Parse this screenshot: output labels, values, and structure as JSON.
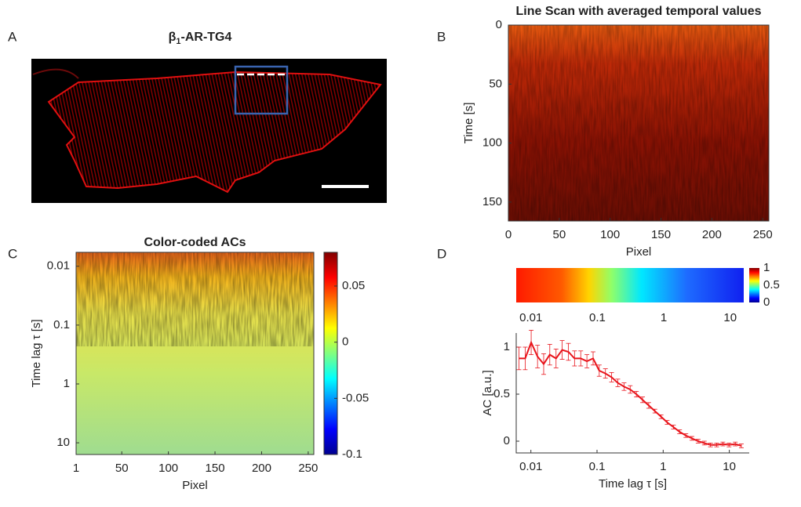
{
  "panel_labels": [
    "A",
    "B",
    "C",
    "D"
  ],
  "chart_data": [
    {
      "type": "image",
      "title": {
        "base": "β",
        "subscript": "1",
        "rest": "-AR-TG4"
      }
    },
    {
      "type": "heatmap",
      "title": "Line Scan with averaged temporal values",
      "xlabel": "Pixel",
      "ylabel": "Time [s]",
      "xlim": [
        0,
        256
      ],
      "ylim": [
        0,
        166
      ],
      "y_reversed": true,
      "xticks": [
        0,
        50,
        100,
        150,
        200,
        250
      ],
      "yticks": [
        0,
        50,
        100,
        150
      ]
    },
    {
      "type": "heatmap",
      "title": "Color-coded ACs",
      "xlabel": "Pixel",
      "ylabel": "Time lag τ [s]",
      "xlim": [
        1,
        256
      ],
      "ylim": [
        0.0058,
        15.8
      ],
      "ylog": true,
      "y_reversed": true,
      "xticks": [
        1,
        50,
        100,
        150,
        200,
        250
      ],
      "yticks": [
        0.01,
        0.1,
        1,
        10
      ],
      "colorbar": {
        "lim": [
          -0.1,
          0.08
        ],
        "ticks": [
          0.05,
          0,
          -0.05,
          -0.1
        ]
      }
    },
    {
      "type": "line",
      "xlabel": "Time lag τ [s]",
      "ylabel": "AC [a.u.]",
      "xlog": true,
      "xlim": [
        0.006,
        20
      ],
      "ylim": [
        -0.125,
        1.15
      ],
      "xticks": [
        0.01,
        0.1,
        1,
        10
      ],
      "yticks": [
        0,
        0.5,
        1
      ],
      "x": [
        0.0066,
        0.0082,
        0.0101,
        0.0126,
        0.0156,
        0.0193,
        0.024,
        0.0297,
        0.0369,
        0.0457,
        0.0567,
        0.0703,
        0.0872,
        0.108,
        0.134,
        0.166,
        0.206,
        0.256,
        0.317,
        0.393,
        0.488,
        0.605,
        0.75,
        0.93,
        1.15,
        1.43,
        1.77,
        2.2,
        2.72,
        3.38,
        4.19,
        5.19,
        6.44,
        7.99,
        9.9,
        12.3,
        15.2
      ],
      "series": [
        {
          "color": "#e8141b",
          "values": [
            0.88,
            0.88,
            1.05,
            0.9,
            0.82,
            0.92,
            0.88,
            0.97,
            0.95,
            0.88,
            0.88,
            0.85,
            0.88,
            0.75,
            0.72,
            0.68,
            0.62,
            0.58,
            0.55,
            0.5,
            0.44,
            0.38,
            0.32,
            0.26,
            0.2,
            0.15,
            0.1,
            0.06,
            0.03,
            0,
            -0.02,
            -0.04,
            -0.04,
            -0.03,
            -0.04,
            -0.03,
            -0.05
          ],
          "errors": [
            0.12,
            0.12,
            0.13,
            0.12,
            0.11,
            0.11,
            0.1,
            0.1,
            0.09,
            0.08,
            0.08,
            0.07,
            0.07,
            0.06,
            0.05,
            0.05,
            0.04,
            0.04,
            0.04,
            0.03,
            0.03,
            0.03,
            0.02,
            0.02,
            0.02,
            0.02,
            0.02,
            0.02,
            0.02,
            0.02,
            0.02,
            0.02,
            0.02,
            0.02,
            0.02,
            0.02,
            0.02
          ]
        }
      ],
      "colorbar": {
        "xlim": [
          0.006,
          16
        ],
        "xticks": [
          0.01,
          0.1,
          1,
          10
        ],
        "scale": {
          "lim": [
            0,
            1
          ],
          "ticks": [
            0,
            0.5,
            1
          ]
        }
      }
    }
  ]
}
